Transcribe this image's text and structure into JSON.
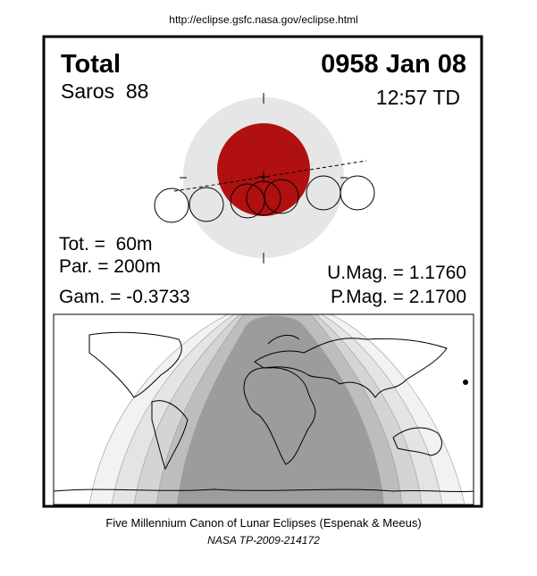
{
  "header": {
    "url": "http://eclipse.gsfc.nasa.gov/eclipse.html"
  },
  "eclipse": {
    "type": "Total",
    "date": "0958 Jan 08",
    "saros": "Saros  88",
    "time": "12:57 TD",
    "stats": {
      "total": "Tot. =  60m",
      "partial": "Par. = 200m",
      "gamma": "Gam. = -0.3733",
      "umbral_mag": "U.Mag. = 1.1760",
      "penumbral_mag": "P.Mag. = 2.1700"
    }
  },
  "footer": {
    "title": "Five Millennium Canon of Lunar Eclipses (Espenak & Meeus)",
    "reference": "NASA TP-2009-214172"
  }
}
